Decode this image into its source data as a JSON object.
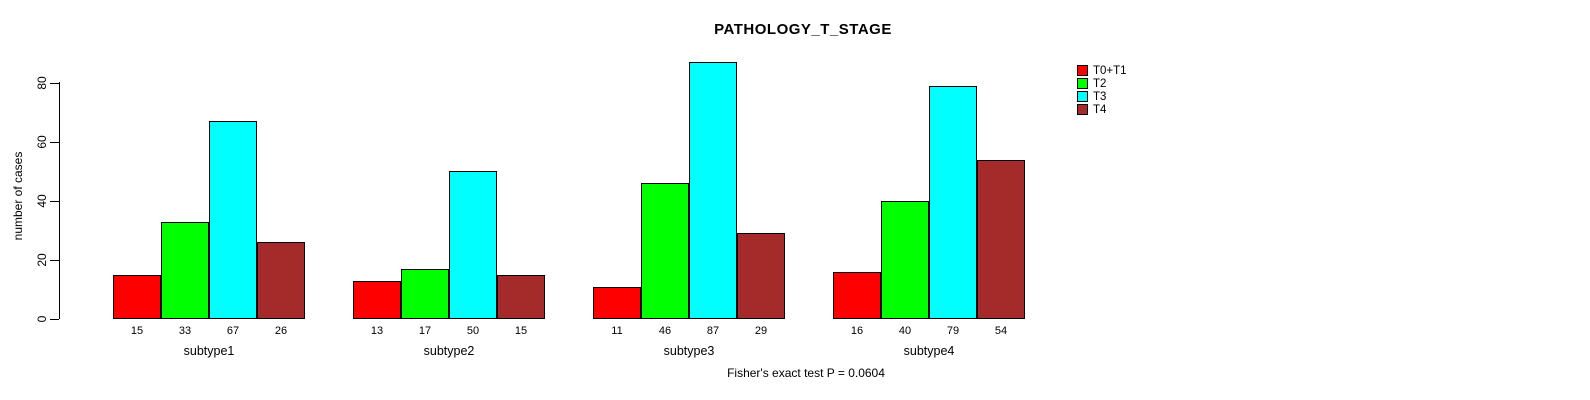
{
  "title": "PATHOLOGY_T_STAGE",
  "footer": "Fisher's exact test P = 0.0604",
  "chart_data": {
    "type": "bar",
    "grouped": true,
    "title": "PATHOLOGY_T_STAGE",
    "xlabel": "",
    "ylabel": "number of cases",
    "categories": [
      "subtype1",
      "subtype2",
      "subtype3",
      "subtype4"
    ],
    "series": [
      {
        "name": "T0+T1",
        "color": "#FF0000",
        "values": [
          15,
          13,
          11,
          16
        ]
      },
      {
        "name": "T2",
        "color": "#00FF00",
        "values": [
          33,
          17,
          46,
          40
        ]
      },
      {
        "name": "T3",
        "color": "#00FFFF",
        "values": [
          67,
          50,
          87,
          79
        ]
      },
      {
        "name": "T4",
        "color": "#A52A2A",
        "values": [
          26,
          15,
          29,
          54
        ]
      }
    ],
    "yticks": [
      0,
      20,
      40,
      60,
      80
    ],
    "ylim": [
      0,
      88
    ],
    "grid": false,
    "legend_position": "top-right",
    "bar_value_labels": true,
    "annotation": "Fisher's exact test P = 0.0604",
    "colors": {
      "bar_border": "#000000",
      "axis": "#000000",
      "background": "#FFFFFF"
    }
  }
}
